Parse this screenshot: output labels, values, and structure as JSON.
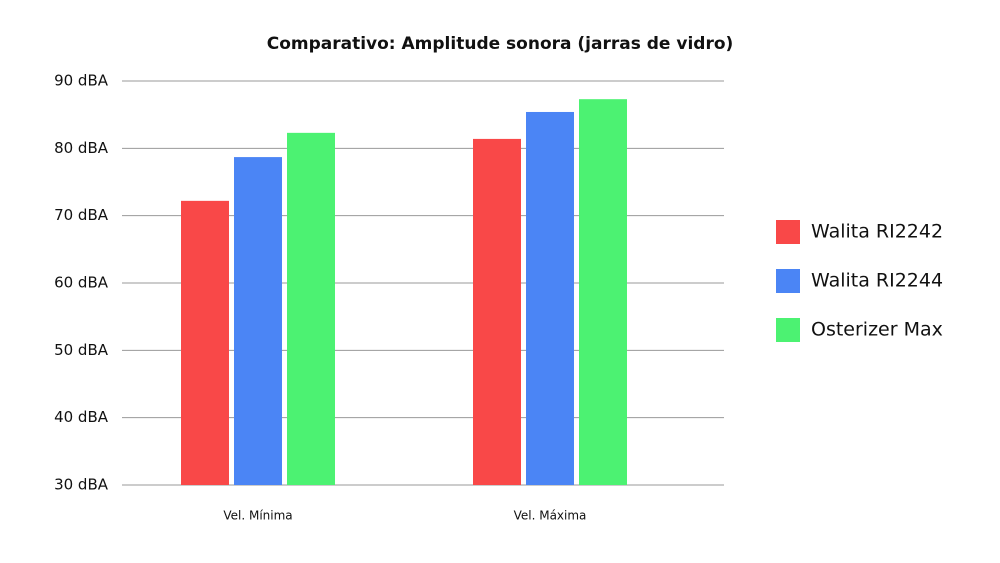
{
  "chart_data": {
    "type": "bar",
    "title": "Comparativo: Amplitude sonora (jarras de vidro)",
    "categories": [
      "Vel. Mínima",
      "Vel. Máxima"
    ],
    "series": [
      {
        "name": "Walita RI2242",
        "color": "#f94848",
        "values": [
          72.2,
          81.4
        ]
      },
      {
        "name": "Walita RI2244",
        "color": "#4b85f5",
        "values": [
          78.7,
          85.4
        ]
      },
      {
        "name": "Osterizer Max",
        "color": "#4cf272",
        "values": [
          82.3,
          87.3
        ]
      }
    ],
    "ylim": [
      30,
      90
    ],
    "yticks": [
      {
        "value": 30,
        "label": "30 dBA"
      },
      {
        "value": 40,
        "label": "40 dBA"
      },
      {
        "value": 50,
        "label": "50 dBA"
      },
      {
        "value": 60,
        "label": "60 dBA"
      },
      {
        "value": 70,
        "label": "70 dBA"
      },
      {
        "value": 80,
        "label": "80 dBA"
      },
      {
        "value": 90,
        "label": "90 dBA"
      }
    ],
    "grid": true,
    "legend": "right"
  }
}
